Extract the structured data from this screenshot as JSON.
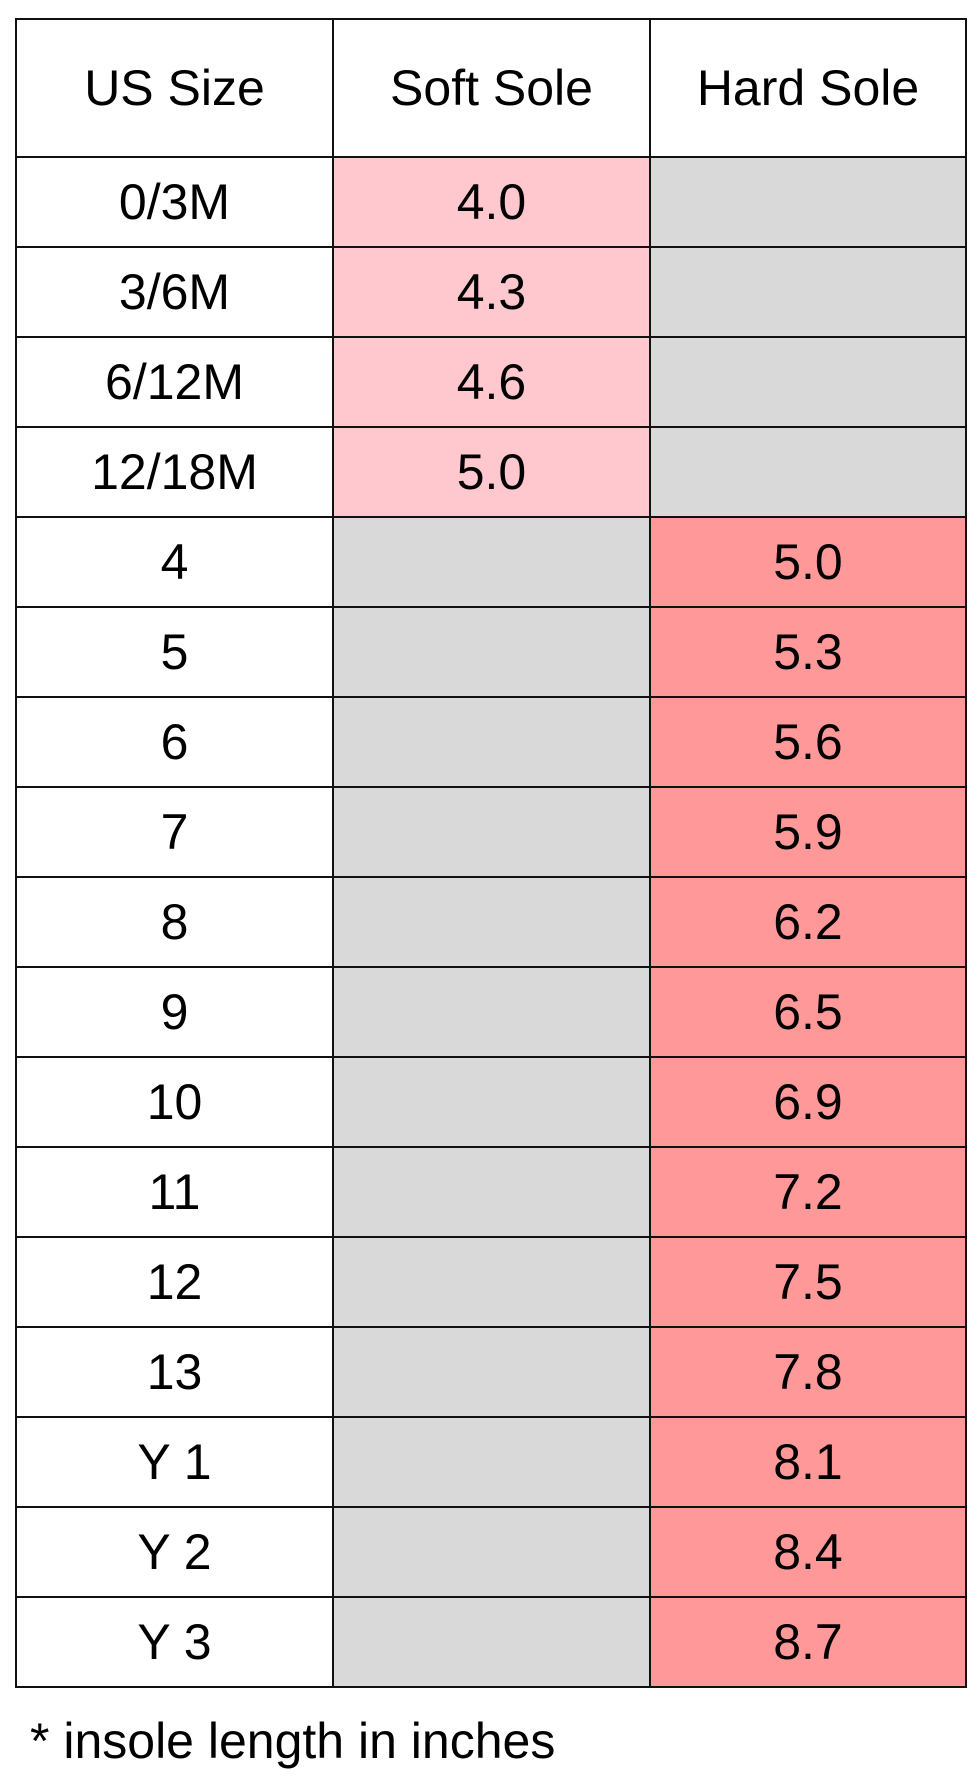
{
  "table": {
    "header": [
      "US Size",
      "Soft Sole",
      "Hard Sole"
    ],
    "rows": [
      [
        "0/3M",
        "4.0",
        null
      ],
      [
        "3/6M",
        "4.3",
        null
      ],
      [
        "6/12M",
        "4.6",
        null
      ],
      [
        "12/18M",
        "5.0",
        null
      ],
      [
        "4",
        null,
        "5.0"
      ],
      [
        "5",
        null,
        "5.3"
      ],
      [
        "6",
        null,
        "5.6"
      ],
      [
        "7",
        null,
        "5.9"
      ],
      [
        "8",
        null,
        "6.2"
      ],
      [
        "9",
        null,
        "6.5"
      ],
      [
        "10",
        null,
        "6.9"
      ],
      [
        "11",
        null,
        "7.2"
      ],
      [
        "12",
        null,
        "7.5"
      ],
      [
        "13",
        null,
        "7.8"
      ],
      [
        "Y 1",
        null,
        "8.1"
      ],
      [
        "Y 2",
        null,
        "8.4"
      ],
      [
        "Y 3",
        null,
        "8.7"
      ]
    ]
  },
  "footnote": "* insole length in inches"
}
